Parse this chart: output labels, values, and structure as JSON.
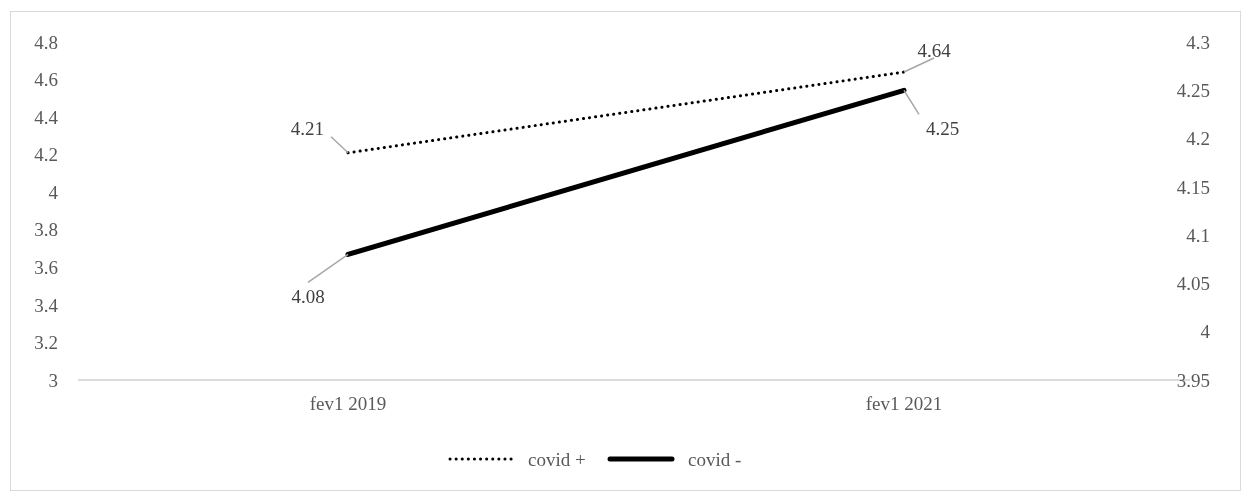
{
  "chart_data": {
    "type": "line",
    "categories": [
      "fev1 2019",
      "fev1 2021"
    ],
    "series": [
      {
        "name": "covid +",
        "color": "#000000",
        "values": [
          4.21,
          4.64
        ],
        "line_style": "dotted"
      },
      {
        "name": "covid -",
        "color": "#000000",
        "values": [
          4.08,
          4.25
        ],
        "axis": "y2",
        "line_style": "solid"
      }
    ],
    "ylim": [
      3,
      4.8
    ],
    "yticks": [
      3,
      3.2,
      3.4,
      3.6,
      3.8,
      4,
      4.2,
      4.4,
      4.6,
      4.8
    ],
    "y2lim": [
      3.95,
      4.3
    ],
    "y2ticks": [
      3.95,
      4,
      4.05,
      4.1,
      4.15,
      4.2,
      4.25,
      4.3
    ],
    "data_labels": true,
    "legend": "bottom",
    "grid": false
  }
}
